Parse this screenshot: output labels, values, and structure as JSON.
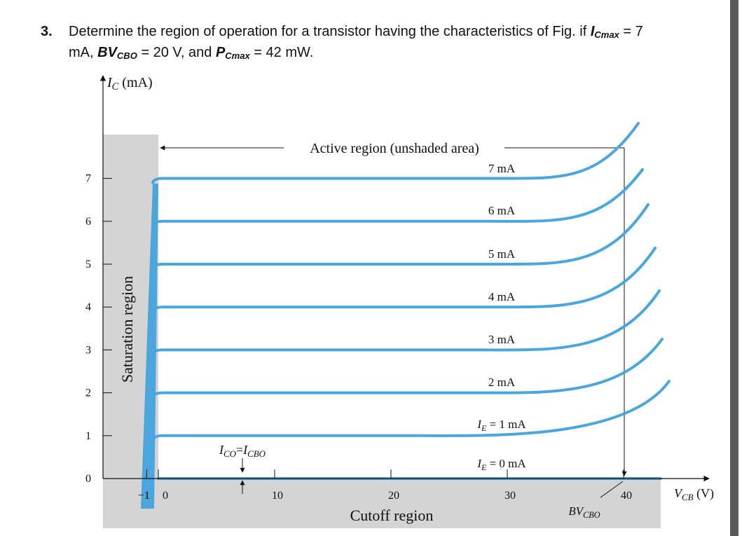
{
  "question": {
    "number": "3.",
    "text_a": "Determine the region of operation for a transistor having the characteristics of Fig. if ",
    "icmax_sym": "I",
    "icmax_sub": "Cmax",
    "text_b": " = 7",
    "text_c": "mA, ",
    "bv_sym": "BV",
    "bv_sub": "CBO",
    "text_d": " = 20 V, and ",
    "pc_sym": "P",
    "pc_sub": "Cmax",
    "text_e": " = 42 mW."
  },
  "chart_data": {
    "type": "line",
    "title": "",
    "ylabel": "IC (mA)",
    "xlabel": "VCB (V)",
    "xlim": [
      -2,
      44
    ],
    "ylim": [
      0,
      8
    ],
    "x_ticks": [
      -1,
      0,
      10,
      20,
      30,
      40
    ],
    "y_ticks": [
      0,
      1,
      2,
      3,
      4,
      5,
      6,
      7
    ],
    "series": [
      {
        "name": "IE = 0 mA",
        "flat_value": 0
      },
      {
        "name": "IE = 1 mA",
        "flat_value": 1
      },
      {
        "name": "2 mA",
        "flat_value": 2
      },
      {
        "name": "3 mA",
        "flat_value": 3
      },
      {
        "name": "4 mA",
        "flat_value": 4
      },
      {
        "name": "5 mA",
        "flat_value": 5
      },
      {
        "name": "6 mA",
        "flat_value": 6
      },
      {
        "name": "7 mA",
        "flat_value": 7
      }
    ],
    "annotations": {
      "active_region": "Active region (unshaded area)",
      "saturation_region": "Saturation region",
      "cutoff_region": "Cutoff region",
      "ico": "ICO = ICBO",
      "breakdown": "BVCBO",
      "breakdown_voltage": 40
    },
    "colors": {
      "curve": "#4aa6dc",
      "shade": "#d4d4d4",
      "axis": "#111111"
    }
  }
}
